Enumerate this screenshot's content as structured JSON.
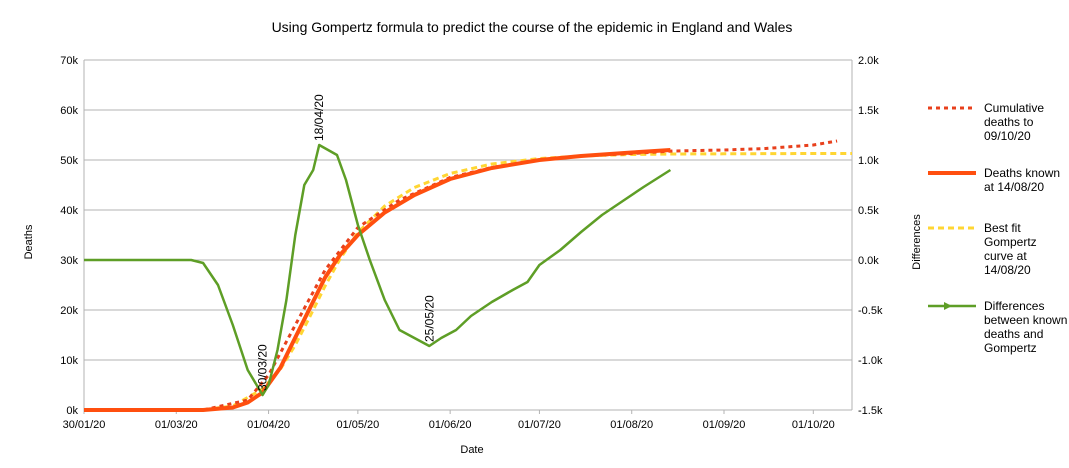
{
  "chart_data": {
    "type": "line",
    "title": "Using Gompertz formula to predict the course of the epidemic in England and Wales",
    "xlabel": "Date",
    "ylabel": "Deaths",
    "y2label": "Differences",
    "x_start": "30/01/20",
    "x_end": "14/10/20",
    "x_tick_labels": [
      "30/01/20",
      "01/03/20",
      "01/04/20",
      "01/05/20",
      "01/06/20",
      "01/07/20",
      "01/08/20",
      "01/09/20",
      "01/10/20"
    ],
    "x_tick_dates": [
      "2020-01-30",
      "2020-03-01",
      "2020-04-01",
      "2020-05-01",
      "2020-06-01",
      "2020-07-01",
      "2020-08-01",
      "2020-09-01",
      "2020-10-01"
    ],
    "ylim": [
      0,
      70000
    ],
    "y_ticks": [
      0,
      10000,
      20000,
      30000,
      40000,
      50000,
      60000,
      70000
    ],
    "y_tick_labels": [
      "0k",
      "10k",
      "20k",
      "30k",
      "40k",
      "50k",
      "60k",
      "70k"
    ],
    "y2lim": [
      -1500,
      2000
    ],
    "y2_ticks": [
      -1500,
      -1000,
      -500,
      0,
      500,
      1000,
      1500,
      2000
    ],
    "y2_tick_labels": [
      "-1.5k",
      "-1.0k",
      "-0.5k",
      "0.0k",
      "0.5k",
      "1.0k",
      "1.5k",
      "2.0k"
    ],
    "grid": "horizontal",
    "legend_position": "right",
    "series": [
      {
        "name": "Cumulative deaths to 09/10/20",
        "axis": "left",
        "style": "dotted",
        "color": "#e8401c",
        "points": [
          [
            "2020-01-30",
            0
          ],
          [
            "2020-03-10",
            0
          ],
          [
            "2020-03-25",
            2000
          ],
          [
            "2020-04-01",
            7000
          ],
          [
            "2020-04-10",
            17000
          ],
          [
            "2020-04-20",
            28000
          ],
          [
            "2020-05-01",
            36500
          ],
          [
            "2020-05-15",
            42000
          ],
          [
            "2020-06-01",
            46500
          ],
          [
            "2020-06-15",
            48500
          ],
          [
            "2020-07-01",
            50000
          ],
          [
            "2020-07-15",
            50800
          ],
          [
            "2020-08-01",
            51300
          ],
          [
            "2020-08-15",
            51800
          ],
          [
            "2020-09-01",
            52000
          ],
          [
            "2020-09-15",
            52300
          ],
          [
            "2020-10-01",
            53000
          ],
          [
            "2020-10-09",
            53800
          ]
        ]
      },
      {
        "name": "Deaths known at 14/08/20",
        "axis": "left",
        "style": "solid",
        "color": "#ff4f0f",
        "points": [
          [
            "2020-01-30",
            0
          ],
          [
            "2020-03-10",
            0
          ],
          [
            "2020-03-20",
            500
          ],
          [
            "2020-03-25",
            1500
          ],
          [
            "2020-03-30",
            3500
          ],
          [
            "2020-04-05",
            8500
          ],
          [
            "2020-04-10",
            14500
          ],
          [
            "2020-04-15",
            20500
          ],
          [
            "2020-04-20",
            26500
          ],
          [
            "2020-04-25",
            31000
          ],
          [
            "2020-05-01",
            35000
          ],
          [
            "2020-05-10",
            39500
          ],
          [
            "2020-05-20",
            43000
          ],
          [
            "2020-06-01",
            46200
          ],
          [
            "2020-06-15",
            48400
          ],
          [
            "2020-07-01",
            50000
          ],
          [
            "2020-07-15",
            50800
          ],
          [
            "2020-08-01",
            51500
          ],
          [
            "2020-08-14",
            52000
          ]
        ]
      },
      {
        "name": "Best fit Gompertz curve at 14/08/20",
        "axis": "left",
        "style": "dashed",
        "color": "#ffd633",
        "points": [
          [
            "2020-01-30",
            0
          ],
          [
            "2020-03-10",
            50
          ],
          [
            "2020-03-20",
            800
          ],
          [
            "2020-03-30",
            4200
          ],
          [
            "2020-04-05",
            8200
          ],
          [
            "2020-04-10",
            13000
          ],
          [
            "2020-04-15",
            18800
          ],
          [
            "2020-04-20",
            24800
          ],
          [
            "2020-04-25",
            30200
          ],
          [
            "2020-05-01",
            35500
          ],
          [
            "2020-05-10",
            40800
          ],
          [
            "2020-05-20",
            44500
          ],
          [
            "2020-06-01",
            47300
          ],
          [
            "2020-06-15",
            49200
          ],
          [
            "2020-07-01",
            50300
          ],
          [
            "2020-07-15",
            50800
          ],
          [
            "2020-08-01",
            51100
          ],
          [
            "2020-08-15",
            51200
          ],
          [
            "2020-09-01",
            51250
          ],
          [
            "2020-10-01",
            51300
          ],
          [
            "2020-10-14",
            51300
          ]
        ]
      },
      {
        "name": "Differences between known deaths and Gompertz",
        "axis": "right",
        "style": "solid",
        "color": "#5e9e26",
        "points": [
          [
            "2020-01-30",
            0
          ],
          [
            "2020-03-06",
            0
          ],
          [
            "2020-03-10",
            -30
          ],
          [
            "2020-03-15",
            -250
          ],
          [
            "2020-03-20",
            -650
          ],
          [
            "2020-03-25",
            -1100
          ],
          [
            "2020-03-30",
            -1350
          ],
          [
            "2020-04-01",
            -1250
          ],
          [
            "2020-04-04",
            -900
          ],
          [
            "2020-04-07",
            -400
          ],
          [
            "2020-04-10",
            250
          ],
          [
            "2020-04-13",
            750
          ],
          [
            "2020-04-16",
            900
          ],
          [
            "2020-04-18",
            1150
          ],
          [
            "2020-04-21",
            1100
          ],
          [
            "2020-04-24",
            1050
          ],
          [
            "2020-04-27",
            800
          ],
          [
            "2020-05-01",
            350
          ],
          [
            "2020-05-05",
            0
          ],
          [
            "2020-05-10",
            -400
          ],
          [
            "2020-05-15",
            -700
          ],
          [
            "2020-05-20",
            -780
          ],
          [
            "2020-05-25",
            -860
          ],
          [
            "2020-05-29",
            -780
          ],
          [
            "2020-06-03",
            -700
          ],
          [
            "2020-06-08",
            -560
          ],
          [
            "2020-06-15",
            -420
          ],
          [
            "2020-06-22",
            -300
          ],
          [
            "2020-06-27",
            -220
          ],
          [
            "2020-07-01",
            -50
          ],
          [
            "2020-07-08",
            100
          ],
          [
            "2020-07-15",
            280
          ],
          [
            "2020-07-22",
            450
          ],
          [
            "2020-07-29",
            590
          ],
          [
            "2020-08-05",
            730
          ],
          [
            "2020-08-14",
            900
          ]
        ]
      }
    ],
    "annotations": [
      {
        "text": "30/03/20",
        "date": "2020-03-30",
        "value": -1350,
        "axis": "right"
      },
      {
        "text": "18/04/20",
        "date": "2020-04-18",
        "value": 1150,
        "axis": "right"
      },
      {
        "text": "25/05/20",
        "date": "2020-05-25",
        "value": -860,
        "axis": "right"
      }
    ]
  }
}
